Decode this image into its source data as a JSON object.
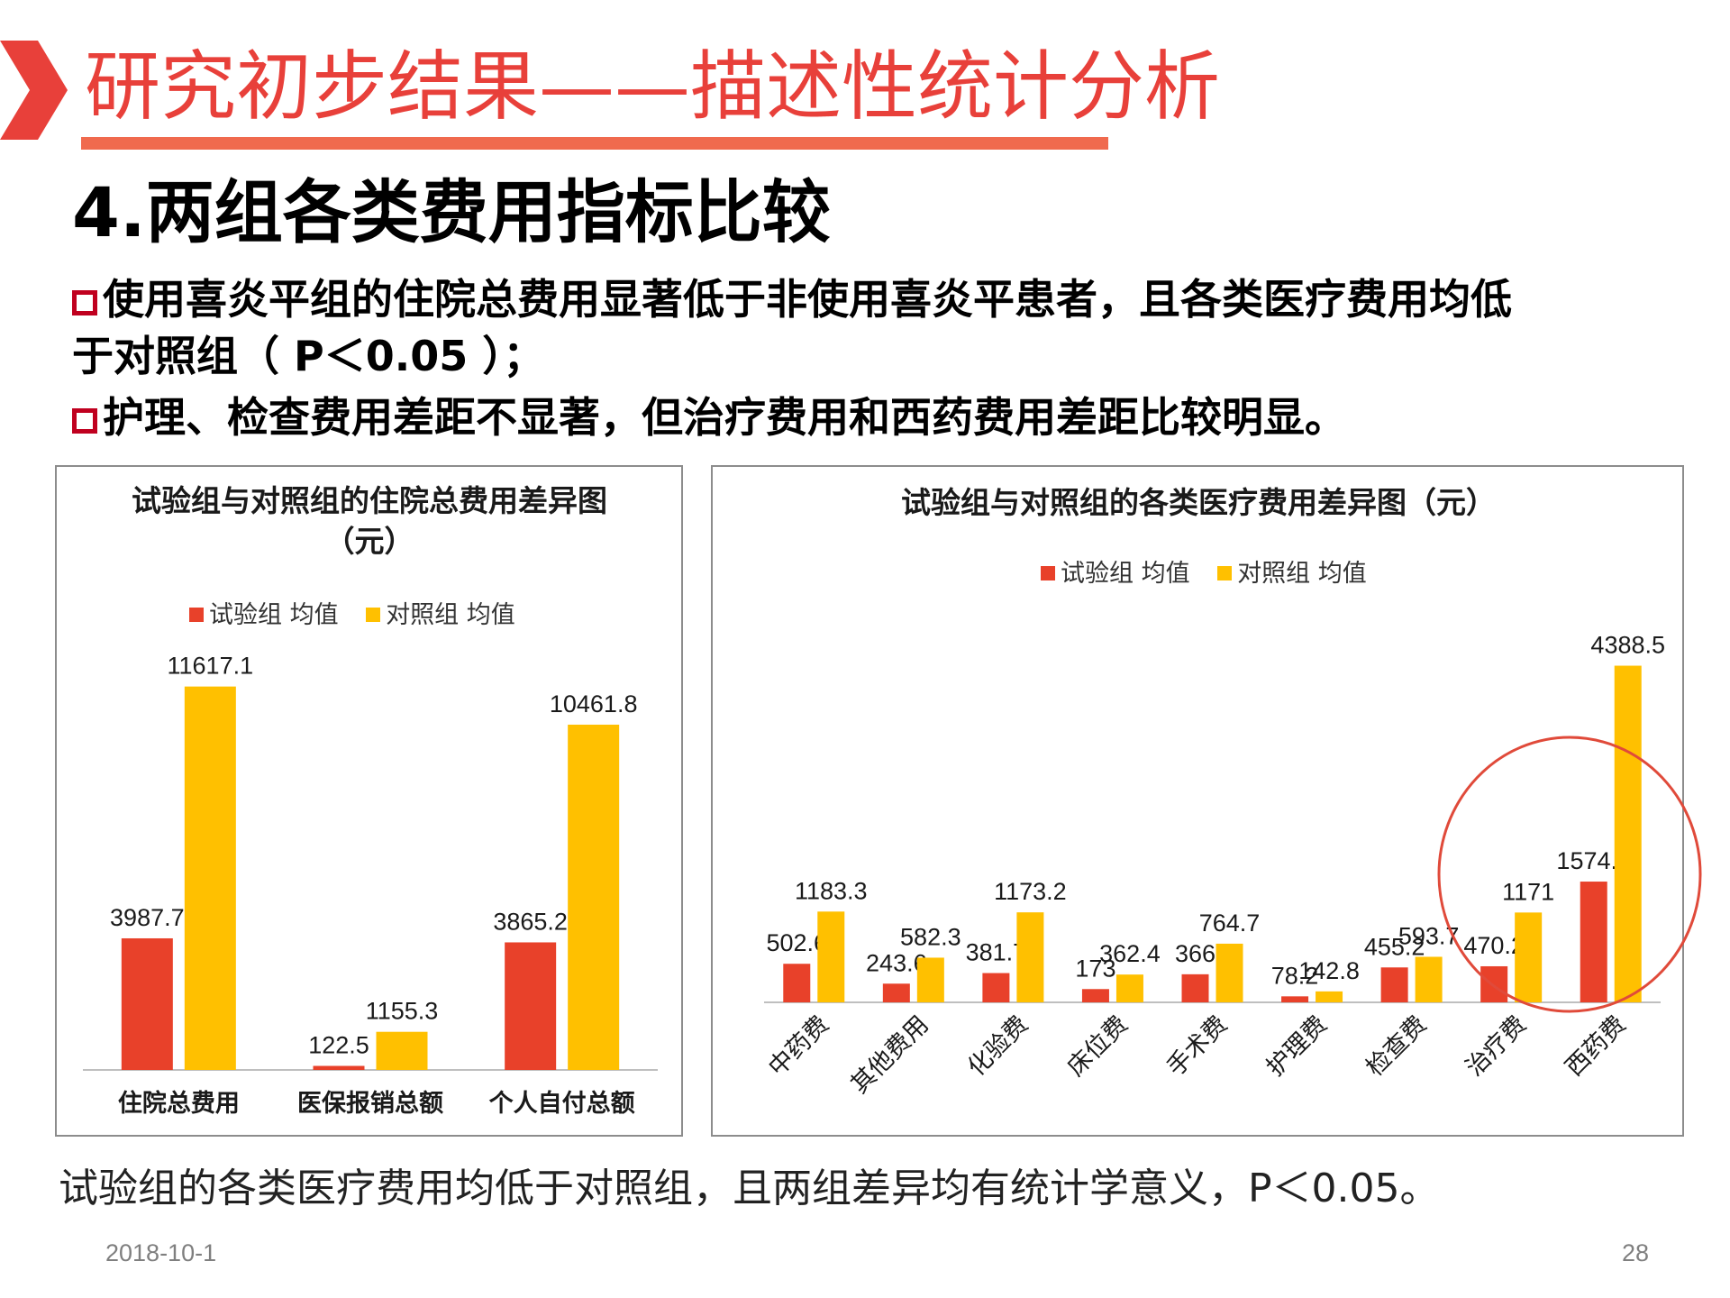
{
  "slide": {
    "title": "研究初步结果——描述性统计分析",
    "section_heading": "4.两组各类费用指标比较",
    "bullets": [
      "使用喜炎平组的住院总费用显著低于非使用喜炎平患者，且各类医疗费用均低",
      "于对照组（  P＜0.05  ）；",
      "护理、检查费用差距不显著，但治疗费用和西药费用差距比较明显。"
    ],
    "conclusion": "试验组的各类医疗费用均低于对照组，且两组差异均有统计学意义，P＜0.05。",
    "footer_date": "2018-10-1",
    "page_number": "28"
  },
  "colors": {
    "accent": "#e8403a",
    "underline": "#f06a4e",
    "series_experiment": "#e8412a",
    "series_control": "#ffc000",
    "highlight_circle": "#e04a3a"
  },
  "chart_data": [
    {
      "type": "bar",
      "title": "试验组与对照组的住院总费用差异图（元）",
      "categories": [
        "住院总费用",
        "医保报销总额",
        "个人自付总额"
      ],
      "series": [
        {
          "name": "试验组 均值",
          "values": [
            3987.7,
            122.5,
            3865.2
          ]
        },
        {
          "name": "对照组 均值",
          "values": [
            11617.1,
            1155.3,
            10461.8
          ]
        }
      ],
      "legend": "top",
      "grid": false,
      "ylim": [
        0,
        13000
      ]
    },
    {
      "type": "bar",
      "title": "试验组与对照组的各类医疗费用差异图（元）",
      "categories": [
        "中药费",
        "其他费用",
        "化验费",
        "床位费",
        "手术费",
        "护理费",
        "检查费",
        "治疗费",
        "西药费"
      ],
      "series": [
        {
          "name": "试验组 均值",
          "values": [
            502.6,
            243.6,
            381.7,
            173,
            366,
            78.2,
            455.2,
            470.2,
            1574.1
          ]
        },
        {
          "name": "对照组 均值",
          "values": [
            1183.3,
            582.3,
            1173.2,
            362.4,
            764.7,
            142.8,
            593.7,
            1171,
            4388.5
          ]
        }
      ],
      "legend": "top",
      "grid": false,
      "ylim": [
        0,
        4900
      ],
      "annotation": "highlight circle around 治疗费 and 西药费"
    }
  ]
}
